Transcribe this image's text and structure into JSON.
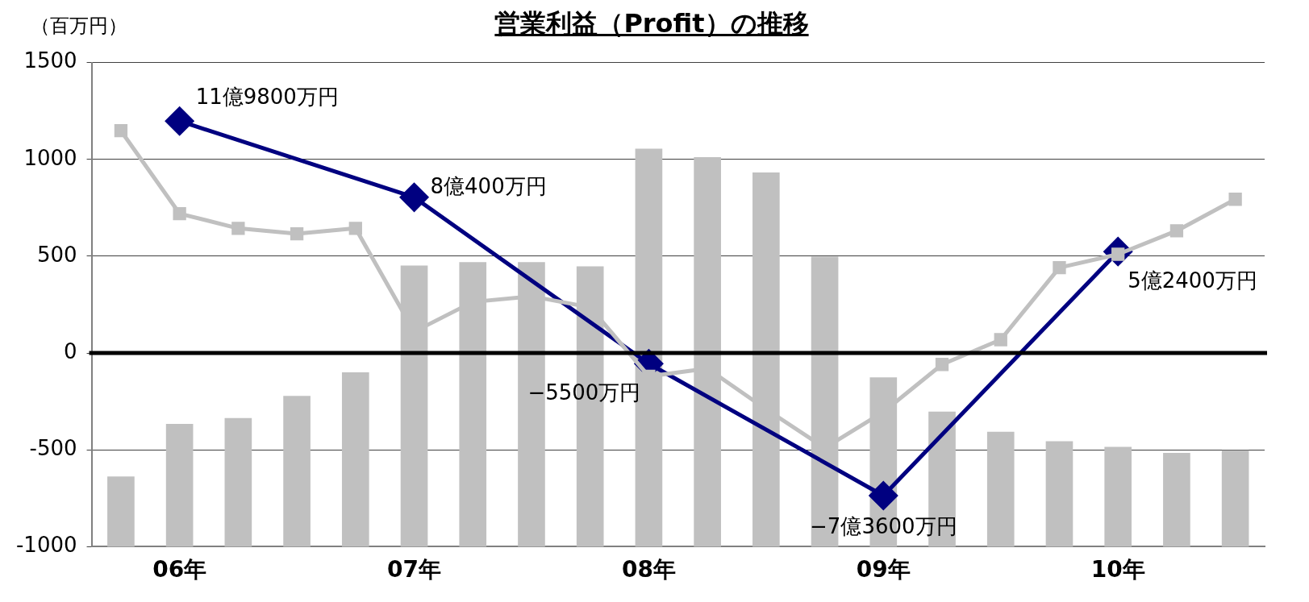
{
  "chart_data": {
    "type": "line",
    "title": "営業利益（Profit）の推移",
    "ylabel": "（百万円）",
    "categories": [
      null,
      "06年",
      null,
      null,
      null,
      "07年",
      null,
      null,
      null,
      "08年",
      null,
      null,
      null,
      "09年",
      null,
      null,
      null,
      "10年",
      null,
      null
    ],
    "ylim": [
      -1000,
      1500
    ],
    "yticks": [
      -1000,
      -500,
      0,
      500,
      1000,
      1500
    ],
    "grid": "y",
    "legend": false,
    "ref_lines": [
      {
        "axis": "y",
        "value": 0,
        "color": "#000000"
      }
    ],
    "annotations": [
      {
        "text": "11億9800万円",
        "x": "06年",
        "y": 1198
      },
      {
        "text": "8億400万円",
        "x": "07年",
        "y": 804
      },
      {
        "text": "−5500万円",
        "x": "08年",
        "y": -55
      },
      {
        "text": "−7億3600万円",
        "x": "09年",
        "y": -736
      },
      {
        "text": "5億2400万円",
        "x": "10年",
        "y": 524
      }
    ],
    "series": [
      {
        "type": "bar",
        "color": "#c0c0c0",
        "base": [
          -1000,
          -1000,
          -1000,
          -1000,
          -1000,
          -1000,
          -1000,
          -1000,
          -1000,
          -1000,
          -1000,
          -1000,
          -1000,
          -1000,
          -1000,
          -1000,
          -1000,
          -1000,
          -1000,
          -1000
        ],
        "values": [
          361,
          633,
          663,
          777,
          899,
          1450,
          1468,
          1468,
          1446,
          2054,
          2010,
          1931,
          1496,
          873,
          696,
          592,
          543,
          514,
          483,
          496
        ]
      },
      {
        "color": "#c0c0c0",
        "marker": "square",
        "values": [
          1148,
          720,
          644,
          616,
          644,
          110,
          264,
          293,
          236,
          -120,
          -80,
          -290,
          -490,
          -304,
          -59,
          69,
          441,
          510,
          631,
          794
        ]
      },
      {
        "color": "#000080",
        "marker": "diamond",
        "x": [
          "06年",
          "07年",
          "08年",
          "09年",
          "10年"
        ],
        "values": [
          1198,
          804,
          -55,
          -736,
          524
        ]
      }
    ]
  }
}
